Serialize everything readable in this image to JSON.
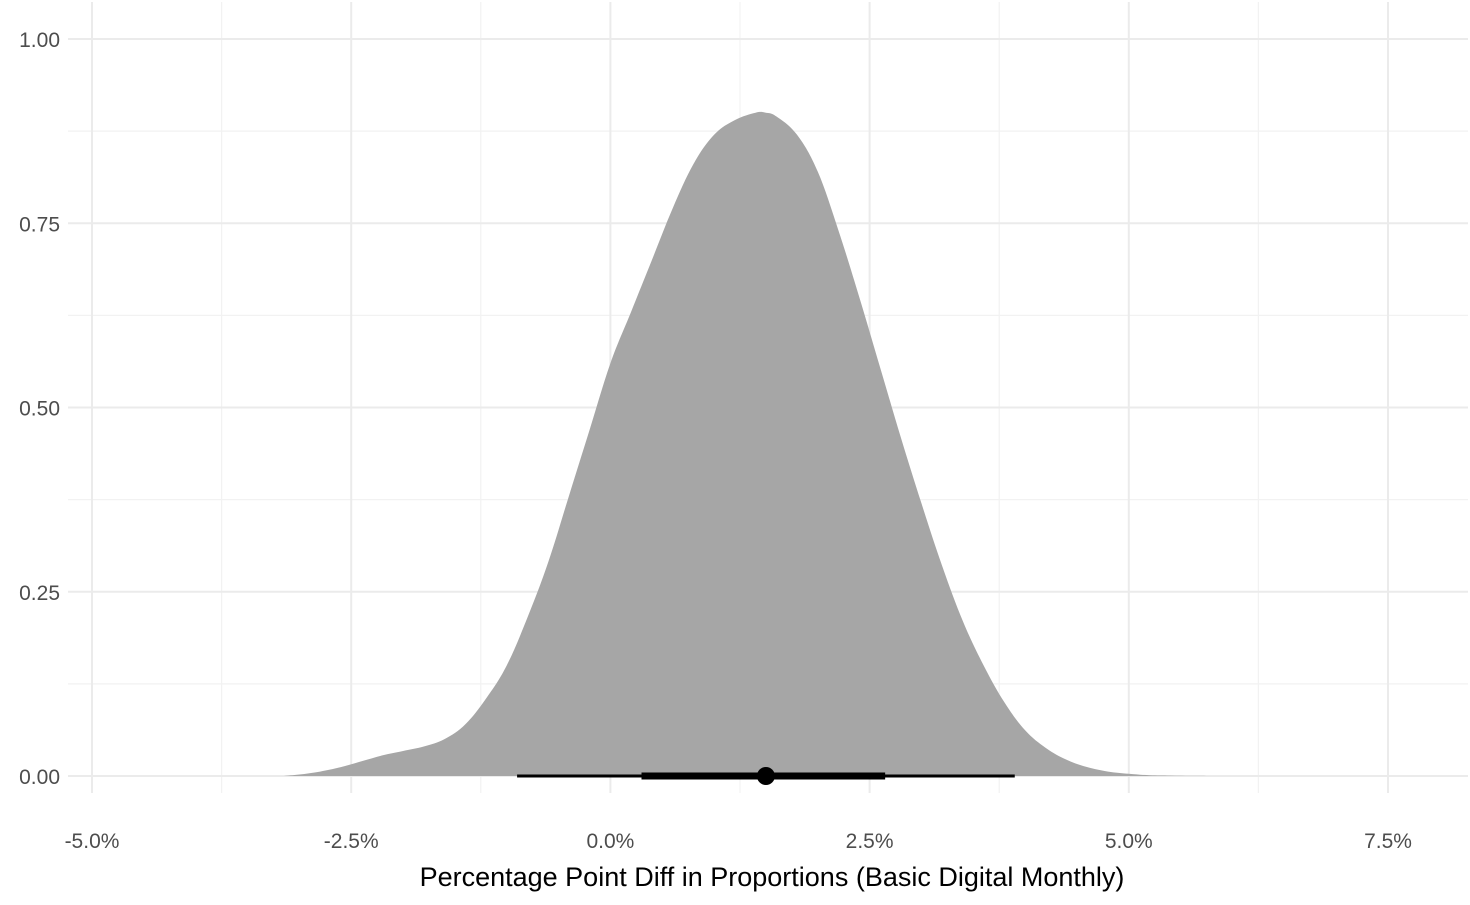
{
  "chart_data": {
    "type": "area",
    "title": "",
    "xlabel": "Percentage Point Diff in Proportions (Basic Digital Monthly)",
    "ylabel": "",
    "xlim": [
      -5.0,
      8.2
    ],
    "ylim": [
      -0.02,
      1.02
    ],
    "x_ticks": [
      {
        "value": -5.0,
        "label": "-5.0%"
      },
      {
        "value": -2.5,
        "label": "-2.5%"
      },
      {
        "value": 0.0,
        "label": "0.0%"
      },
      {
        "value": 2.5,
        "label": "2.5%"
      },
      {
        "value": 5.0,
        "label": "5.0%"
      },
      {
        "value": 7.5,
        "label": "7.5%"
      }
    ],
    "y_ticks": [
      {
        "value": 0.0,
        "label": "0.00"
      },
      {
        "value": 0.25,
        "label": "0.25"
      },
      {
        "value": 0.5,
        "label": "0.50"
      },
      {
        "value": 0.75,
        "label": "0.75"
      },
      {
        "value": 1.0,
        "label": "1.00"
      }
    ],
    "grid": true,
    "legend": "none",
    "density": {
      "name": "",
      "color": "#a6a6a6",
      "x": [
        -3.15,
        -3.0,
        -2.8,
        -2.6,
        -2.4,
        -2.2,
        -2.0,
        -1.8,
        -1.6,
        -1.4,
        -1.2,
        -1.0,
        -0.8,
        -0.6,
        -0.4,
        -0.2,
        0.0,
        0.2,
        0.4,
        0.6,
        0.8,
        1.0,
        1.2,
        1.4,
        1.5,
        1.6,
        1.8,
        2.0,
        2.2,
        2.4,
        2.6,
        2.8,
        3.0,
        3.2,
        3.4,
        3.6,
        3.8,
        4.0,
        4.2,
        4.4,
        4.6,
        4.8,
        5.0,
        5.2,
        5.4,
        5.6,
        5.78
      ],
      "y": [
        0.0,
        0.002,
        0.006,
        0.012,
        0.02,
        0.028,
        0.034,
        0.04,
        0.05,
        0.07,
        0.105,
        0.15,
        0.215,
        0.29,
        0.38,
        0.47,
        0.56,
        0.63,
        0.7,
        0.77,
        0.83,
        0.87,
        0.89,
        0.9,
        0.9,
        0.895,
        0.87,
        0.82,
        0.74,
        0.65,
        0.555,
        0.46,
        0.37,
        0.285,
        0.21,
        0.15,
        0.1,
        0.062,
        0.038,
        0.022,
        0.012,
        0.006,
        0.003,
        0.001,
        0.0005,
        0.0001,
        0.0
      ]
    },
    "interval": {
      "point": 1.5,
      "inner": [
        0.3,
        2.65
      ],
      "outer": [
        -0.9,
        3.9
      ],
      "color": "#000000"
    }
  }
}
